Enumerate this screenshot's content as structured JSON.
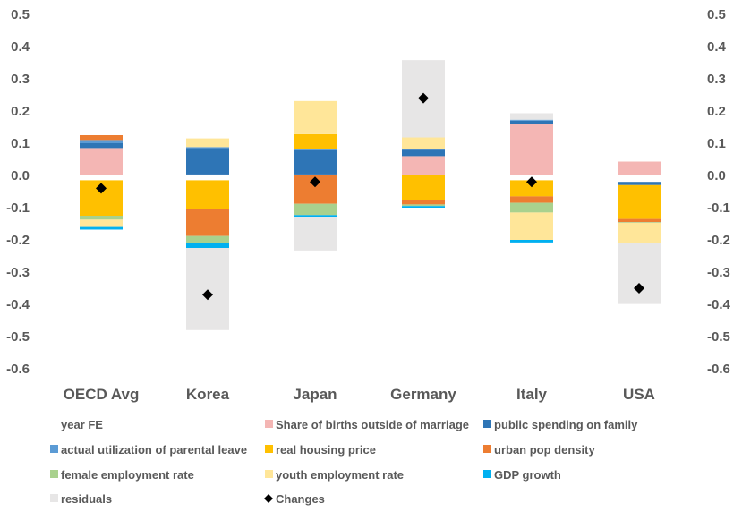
{
  "chart_data": {
    "type": "bar",
    "stacked": true,
    "categories": [
      "OECD Avg",
      "Korea",
      "Japan",
      "Germany",
      "Italy",
      "USA"
    ],
    "ylim": [
      -0.6,
      0.5
    ],
    "yticks": [
      "0.5",
      "0.4",
      "0.3",
      "0.2",
      "0.1",
      "0.0",
      "-0.1",
      "-0.2",
      "-0.3",
      "-0.4",
      "-0.5",
      "-0.6"
    ],
    "secondary_axis": true,
    "grid": false,
    "legend_position": "bottom",
    "series": [
      {
        "name": "year FE",
        "color": "#ffffff",
        "values": [
          -0.015,
          -0.015,
          0,
          0,
          -0.015,
          -0.02
        ]
      },
      {
        "name": "Share of births outside of marriage",
        "color": "#f4b6b4",
        "values": [
          0.085,
          0.003,
          0.003,
          0.06,
          0.16,
          0.043
        ]
      },
      {
        "name": "public spending on family",
        "color": "#2e75b6",
        "values": [
          0.015,
          0.082,
          0.075,
          0.02,
          0.01,
          -0.01
        ]
      },
      {
        "name": "actual utilization of parental leave",
        "color": "#5b9bd5",
        "values": [
          0.01,
          0.003,
          0.003,
          0.003,
          0.003,
          0
        ]
      },
      {
        "name": "real housing price",
        "color": "#ffc000",
        "values": [
          -0.11,
          -0.088,
          0.047,
          -0.075,
          -0.05,
          -0.105
        ]
      },
      {
        "name": "urban pop density",
        "color": "#ed7d31",
        "values": [
          0.015,
          -0.085,
          -0.088,
          -0.015,
          -0.02,
          -0.01
        ]
      },
      {
        "name": "female employment rate",
        "color": "#a9d18e",
        "values": [
          -0.012,
          -0.022,
          -0.035,
          -0.005,
          -0.03,
          -0.002
        ]
      },
      {
        "name": "youth employment rate",
        "color": "#ffe699",
        "values": [
          -0.023,
          0.027,
          0.103,
          0.035,
          -0.085,
          -0.062
        ]
      },
      {
        "name": "GDP growth",
        "color": "#00b0f0",
        "values": [
          -0.008,
          -0.015,
          -0.005,
          -0.005,
          -0.008,
          -0.002
        ]
      },
      {
        "name": "residuals",
        "color": "#e7e6e6",
        "values": [
          0,
          -0.255,
          -0.105,
          0.24,
          0.02,
          -0.188
        ]
      },
      {
        "name": "Changes",
        "color": "#000000",
        "marker": "diamond",
        "values": [
          -0.04,
          -0.37,
          -0.02,
          0.24,
          -0.02,
          -0.35
        ]
      }
    ]
  }
}
